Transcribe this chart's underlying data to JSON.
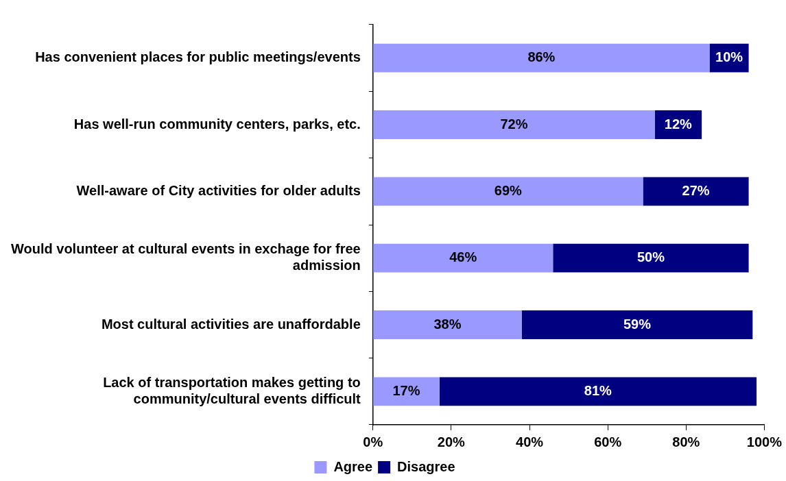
{
  "chart_data": {
    "type": "bar",
    "orientation": "horizontal",
    "stacked": true,
    "categories": [
      "Has convenient places for public meetings/events",
      "Has well-run community centers, parks, etc.",
      "Well-aware of City activities for older adults",
      "Would volunteer at cultural events in exchage for free admission",
      "Most cultural activities are unaffordable",
      "Lack of transportation makes getting to community/cultural events difficult"
    ],
    "series": [
      {
        "name": "Agree",
        "color": "#9999ff",
        "values": [
          86,
          72,
          69,
          46,
          38,
          17
        ],
        "value_labels": [
          "86%",
          "72%",
          "69%",
          "46%",
          "38%",
          "17%"
        ]
      },
      {
        "name": "Disagree",
        "color": "#000080",
        "values": [
          10,
          12,
          27,
          50,
          59,
          81
        ],
        "value_labels": [
          "10%",
          "12%",
          "27%",
          "50%",
          "59%",
          "81%"
        ]
      }
    ],
    "xlim": [
      0,
      100
    ],
    "xticks": [
      {
        "value": 0,
        "label": "0%"
      },
      {
        "value": 20,
        "label": "20%"
      },
      {
        "value": 40,
        "label": "40%"
      },
      {
        "value": 60,
        "label": "60%"
      },
      {
        "value": 80,
        "label": "80%"
      },
      {
        "value": 100,
        "label": "100%"
      }
    ],
    "grid": false,
    "legend": "bottom"
  }
}
